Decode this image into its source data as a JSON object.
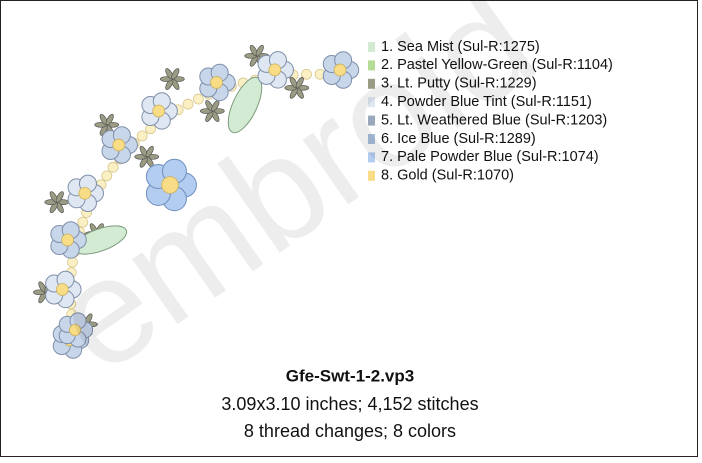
{
  "title": "Gfe-Swt-1-2.vp3",
  "details": [
    "3.09x3.10 inches; 4,152 stitches",
    "8 thread changes; 8 colors"
  ],
  "watermark": "embroid",
  "threads": [
    {
      "text": "1.  Sea Mist (Sul-R:1275)",
      "color": "#d3ebd3"
    },
    {
      "text": "2.  Pastel Yellow-Green (Sul-R:1104)",
      "color": "#b5dc97"
    },
    {
      "text": "3.  Lt. Putty (Sul-R:1229)",
      "color": "#9c9c84"
    },
    {
      "text": "4.  Powder Blue Tint (Sul-R:1151)",
      "color": "#dfe8f2"
    },
    {
      "text": "5.  Lt. Weathered Blue (Sul-R:1203)",
      "color": "#9aa8be"
    },
    {
      "text": "6.  Ice Blue (Sul-R:1289)",
      "color": "#a7bfdc"
    },
    {
      "text": "7.  Pale Powder Blue (Sul-R:1074)",
      "color": "#b3cdf0"
    },
    {
      "text": "8.  Gold (Sul-R:1070)",
      "color": "#f8dc86"
    }
  ]
}
